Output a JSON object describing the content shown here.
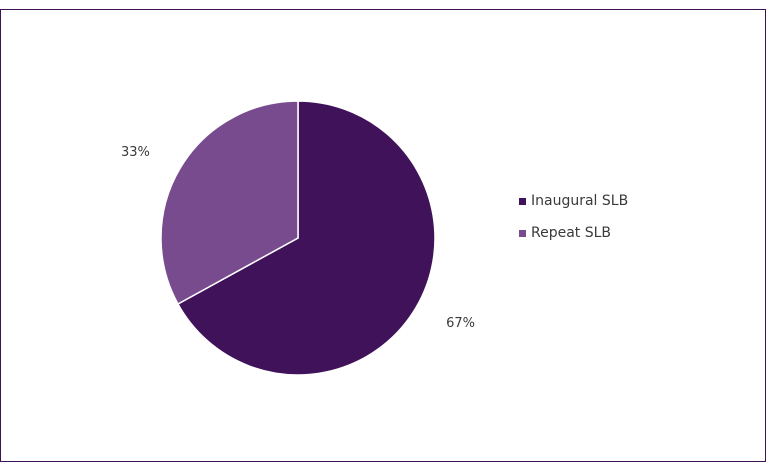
{
  "chart_data": {
    "type": "pie",
    "title": "",
    "categories": [
      "Inaugural SLB",
      "Repeat SLB"
    ],
    "values": [
      67,
      33
    ],
    "value_labels": [
      "67%",
      "33%"
    ],
    "colors": [
      "#40125a",
      "#784b8f"
    ],
    "legend_position": "right"
  }
}
